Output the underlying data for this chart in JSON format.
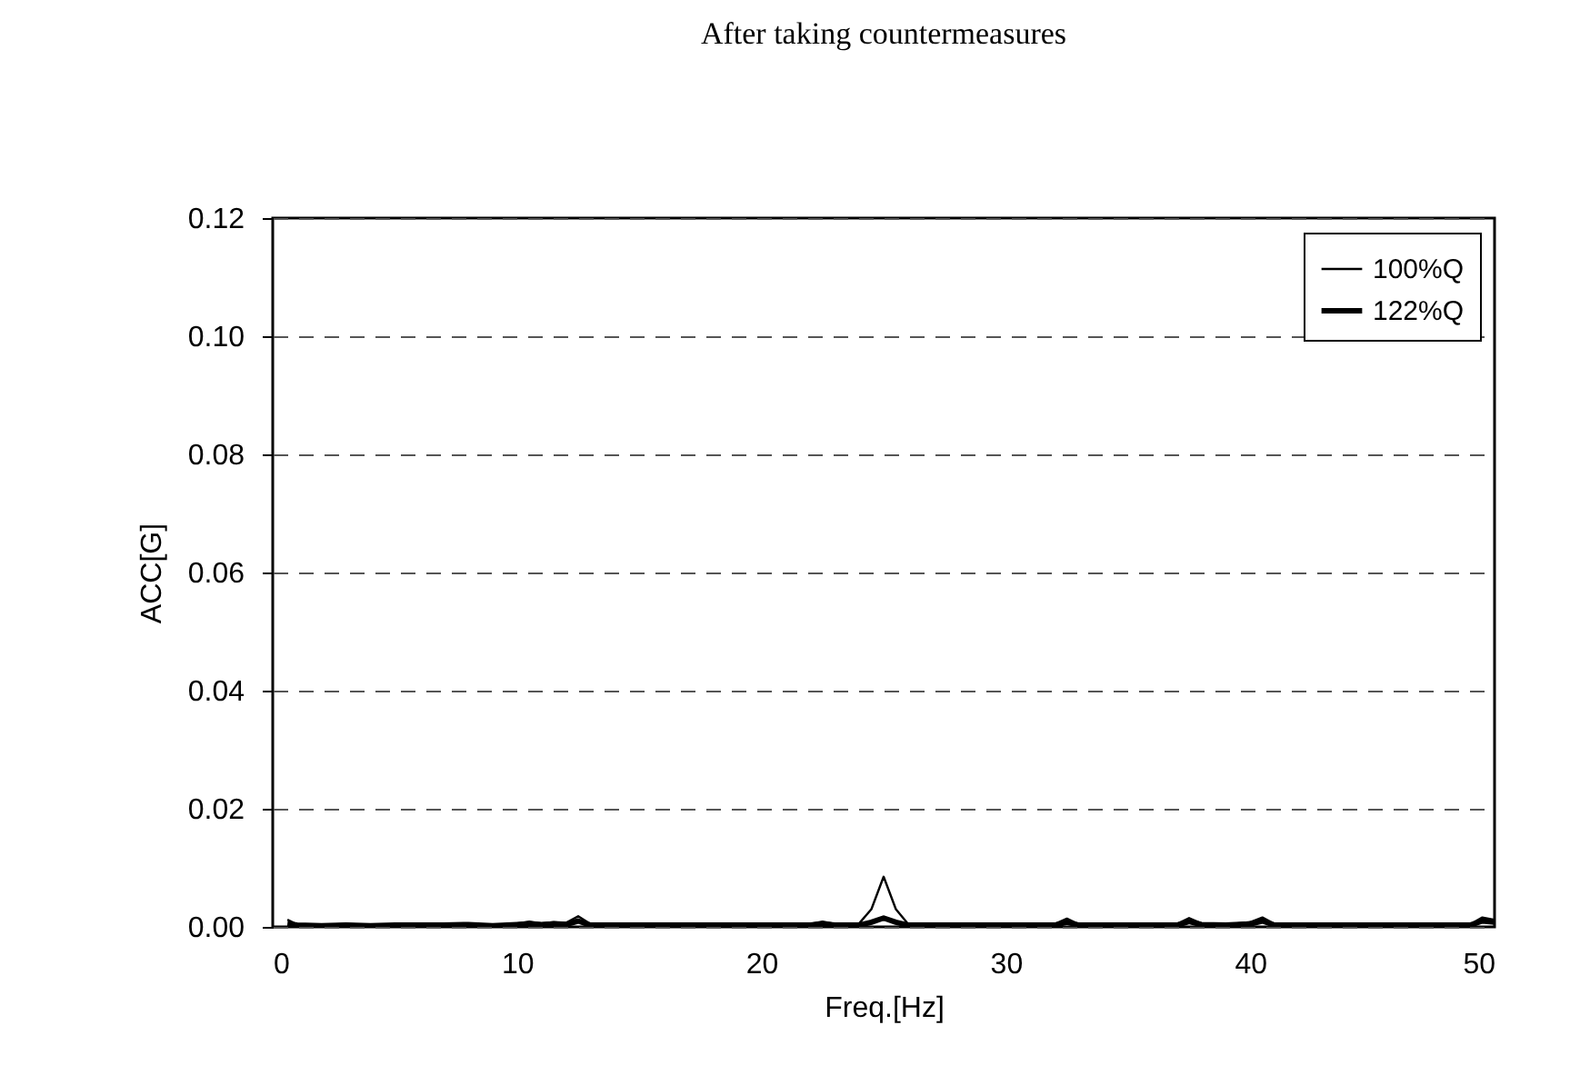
{
  "chart_data": {
    "type": "line",
    "title": "After taking countermeasures",
    "xlabel": "Freq.[Hz]",
    "ylabel": "ACC[G]",
    "x": [
      0.6,
      1,
      2,
      3,
      4,
      5,
      6,
      7,
      8,
      9,
      10,
      10.5,
      11,
      11.5,
      12,
      12.5,
      13,
      14,
      15,
      16,
      17,
      18,
      19,
      20,
      21,
      22,
      22.5,
      23,
      24,
      24.5,
      25,
      25.5,
      26,
      27,
      28,
      29,
      30,
      31,
      32,
      32.5,
      33,
      34,
      35,
      36,
      37,
      37.5,
      38,
      39,
      40,
      40.5,
      41,
      42,
      43,
      44,
      45,
      46,
      47,
      48,
      49,
      49.5,
      50
    ],
    "series": [
      {
        "name": "100%Q",
        "color": "#000000",
        "values": [
          0.0012,
          0.0004,
          0.0003,
          0.0005,
          0.0003,
          0.0004,
          0.0004,
          0.0005,
          0.0006,
          0.0003,
          0.0006,
          0.0009,
          0.0006,
          0.0008,
          0.0007,
          0.0018,
          0.0005,
          0.0004,
          0.0004,
          0.0004,
          0.0004,
          0.0004,
          0.0004,
          0.0004,
          0.0004,
          0.0005,
          0.0009,
          0.0005,
          0.0006,
          0.003,
          0.0085,
          0.003,
          0.0005,
          0.0004,
          0.0004,
          0.0004,
          0.0005,
          0.0004,
          0.0005,
          0.0014,
          0.0004,
          0.0004,
          0.0004,
          0.0004,
          0.0005,
          0.0015,
          0.0006,
          0.0004,
          0.0008,
          0.0016,
          0.0005,
          0.0004,
          0.0004,
          0.0004,
          0.0005,
          0.0004,
          0.0005,
          0.0005,
          0.0004,
          0.0016,
          0.0012
        ]
      },
      {
        "name": "122%Q",
        "color": "#000000",
        "values": [
          0.0005,
          0.0003,
          0.0002,
          0.0003,
          0.0002,
          0.0003,
          0.0003,
          0.0003,
          0.0004,
          0.0002,
          0.0004,
          0.0005,
          0.0004,
          0.0005,
          0.0004,
          0.001,
          0.0003,
          0.0003,
          0.0003,
          0.0003,
          0.0003,
          0.0003,
          0.0003,
          0.0003,
          0.0003,
          0.0003,
          0.0005,
          0.0003,
          0.0003,
          0.0008,
          0.0015,
          0.0008,
          0.0003,
          0.0003,
          0.0003,
          0.0003,
          0.0003,
          0.0003,
          0.0003,
          0.0008,
          0.0003,
          0.0003,
          0.0003,
          0.0003,
          0.0003,
          0.0009,
          0.0004,
          0.0003,
          0.0005,
          0.001,
          0.0003,
          0.0003,
          0.0003,
          0.0003,
          0.0003,
          0.0003,
          0.0003,
          0.0003,
          0.0003,
          0.001,
          0.0008
        ]
      }
    ],
    "xlim": [
      0,
      50
    ],
    "xticks": [
      0,
      10,
      20,
      30,
      40,
      50
    ],
    "ylim": [
      0,
      0.12
    ],
    "yticks": [
      {
        "value": 0,
        "label": "0.00"
      },
      {
        "value": 0.02,
        "label": "0.02"
      },
      {
        "value": 0.04,
        "label": "0.04"
      },
      {
        "value": 0.06,
        "label": "0.06"
      },
      {
        "value": 0.08,
        "label": "0.08"
      },
      {
        "value": 0.1,
        "label": "0.10"
      },
      {
        "value": 0.12,
        "label": "0.12"
      }
    ],
    "grid": "y",
    "legend": "top right",
    "line_style": "solid"
  }
}
